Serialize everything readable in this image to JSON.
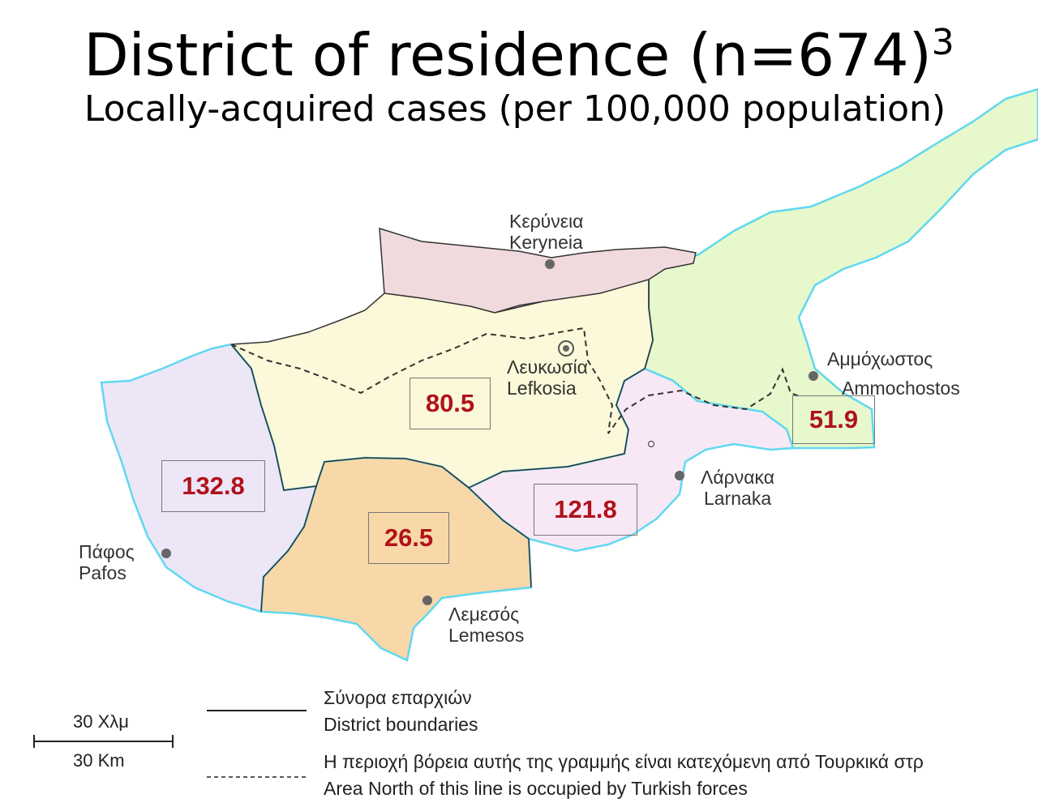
{
  "title": "District of residence (n=674)",
  "title_superscript": "3",
  "subtitle": "Locally-acquired cases (per 100,000 population)",
  "districts": [
    {
      "id": "kyrenia",
      "greek": "Κερύνεια",
      "latin": "Keryneia",
      "color": "#f1dadd",
      "value": ""
    },
    {
      "id": "nicosia",
      "greek": "Λευκωσία",
      "latin": "Lefkosia",
      "color": "#fbf9d9",
      "value": "80.5"
    },
    {
      "id": "famagusta",
      "greek": "Αμμόχωστος",
      "latin": "Ammochostos",
      "color": "#e6f8cc",
      "value": "51.9"
    },
    {
      "id": "larnaca",
      "greek": "Λάρνακα",
      "latin": "Larnaka",
      "color": "#f8e8f6",
      "value": "121.8"
    },
    {
      "id": "limassol",
      "greek": "Λεμεσός",
      "latin": "Lemesos",
      "color": "#f8d8a8",
      "value": "26.5"
    },
    {
      "id": "paphos",
      "greek": "Πάφος",
      "latin": "Pafos",
      "color": "#ede6f7",
      "value": "132.8"
    }
  ],
  "legend": {
    "district_boundaries_greek": "Σύνορα επαρχιών",
    "district_boundaries_latin": "District boundaries",
    "occupied_line_greek": "Η περιοχή βόρεια αυτής της γραμμής είναι κατεχόμενη από Τουρκικά στρ",
    "occupied_line_latin": "Area North of this line is occupied by Turkish forces"
  },
  "scale": {
    "greek": "30 Χλμ",
    "latin": "30 Km"
  },
  "colors": {
    "value_text": "#b0121b",
    "coast": "#5fd8f0",
    "boundary": "#333333"
  }
}
